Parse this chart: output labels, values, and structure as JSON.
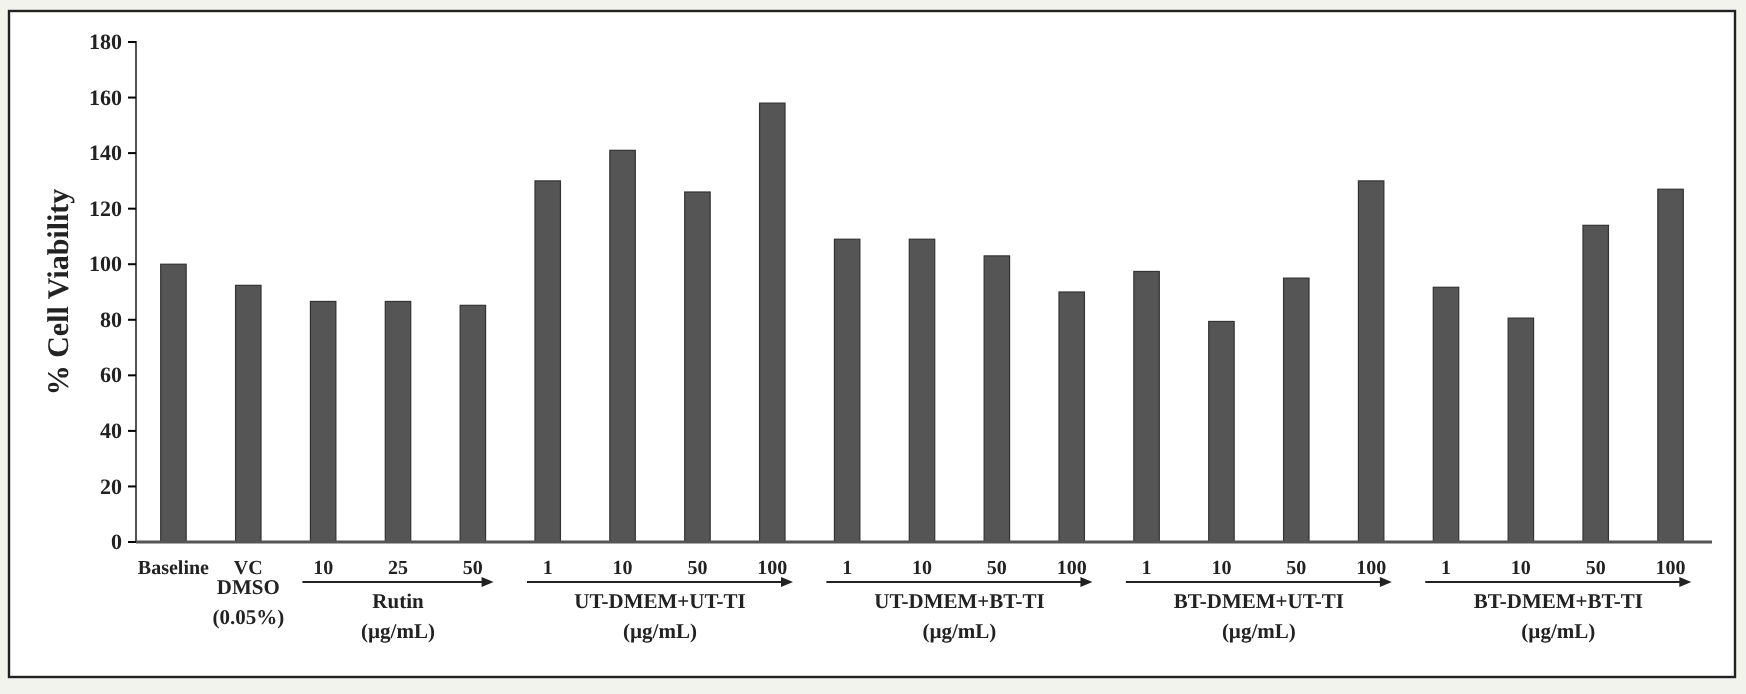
{
  "chart_data": {
    "type": "bar",
    "ylabel": "% Cell Viability",
    "categories": [
      "Baseline",
      "VC",
      "10",
      "25",
      "50",
      "1",
      "10",
      "50",
      "100",
      "1",
      "10",
      "50",
      "100",
      "1",
      "10",
      "50",
      "100",
      "1",
      "10",
      "50",
      "100"
    ],
    "values": [
      100,
      92.4,
      86.6,
      86.6,
      85.2,
      130,
      141,
      126,
      158,
      109,
      109,
      103,
      90,
      97.4,
      79.4,
      95,
      130,
      91.7,
      80.6,
      114,
      127
    ],
    "color": "#555555",
    "ylim": [
      0,
      180
    ],
    "yticks": [
      0,
      20,
      40,
      60,
      80,
      100,
      120,
      140,
      160,
      180
    ],
    "grid": false,
    "annotations": [
      "DMSO (0.05%)",
      "Rutin (µg/mL)",
      "UT-DMEM+UT-TI (µg/mL)",
      "UT-DMEM+BT-TI (µg/mL)",
      "BT-DMEM+UT-TI (µg/mL)",
      "BT-DMEM+BT-TI (µg/mL)"
    ]
  }
}
